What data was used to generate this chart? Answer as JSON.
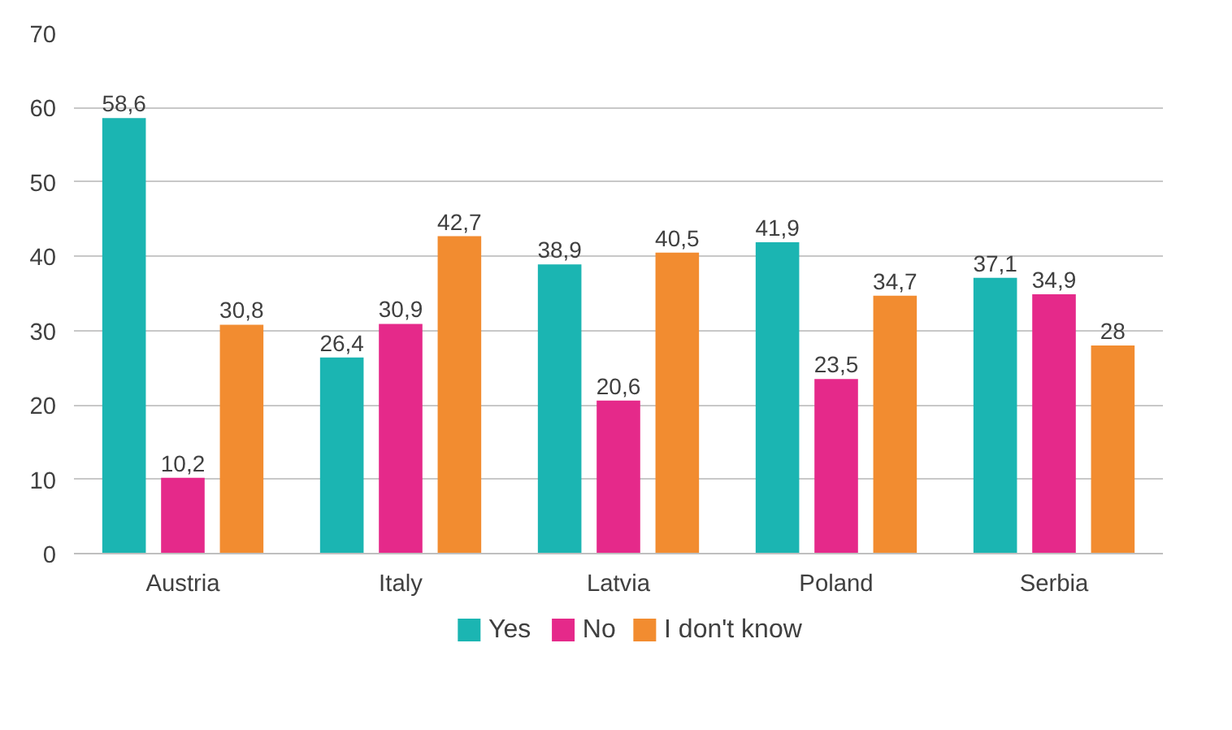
{
  "chart_data": {
    "type": "bar",
    "categories": [
      "Austria",
      "Italy",
      "Latvia",
      "Poland",
      "Serbia"
    ],
    "series": [
      {
        "name": "Yes",
        "color": "#1bb5b2",
        "values": [
          58.6,
          26.4,
          38.9,
          41.9,
          37.1
        ],
        "value_labels": [
          "58,6",
          "26,4",
          "38,9",
          "41,9",
          "37,1"
        ]
      },
      {
        "name": "No",
        "color": "#e5298a",
        "values": [
          10.2,
          30.9,
          20.6,
          23.5,
          34.9
        ],
        "value_labels": [
          "10,2",
          "30,9",
          "20,6",
          "23,5",
          "34,9"
        ]
      },
      {
        "name": "I don't know",
        "color": "#f28c30",
        "values": [
          30.8,
          42.7,
          40.5,
          34.7,
          28
        ],
        "value_labels": [
          "30,8",
          "42,7",
          "40,5",
          "34,7",
          "28"
        ]
      }
    ],
    "ylim": [
      0,
      70
    ],
    "yticks": [
      0,
      10,
      20,
      30,
      40,
      50,
      60,
      70
    ],
    "grid": "y",
    "legend": "bottom"
  }
}
